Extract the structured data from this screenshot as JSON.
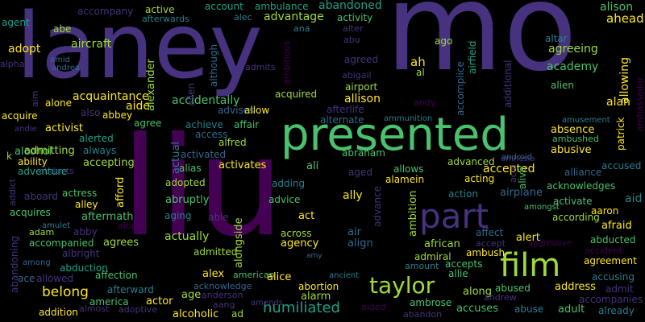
{
  "palette": {
    "background": "#000000",
    "indigo": "#46327e",
    "purple": "#440154",
    "blue": "#31688e",
    "teal": "#277f8e",
    "seagreen": "#1fa187",
    "green": "#4ac16d",
    "lime": "#a0da39",
    "yellow": "#fde725"
  },
  "words": [
    {
      "text": "mo",
      "color": "indigo"
    },
    {
      "text": "laney",
      "color": "indigo"
    },
    {
      "text": "liu",
      "color": "purple"
    },
    {
      "text": "presented",
      "color": "green"
    },
    {
      "text": "part",
      "color": "indigo"
    },
    {
      "text": "film",
      "color": "lime"
    },
    {
      "text": "taylor",
      "color": "lime"
    },
    {
      "text": "humiliated",
      "color": "seagreen"
    },
    {
      "text": "belong",
      "color": "yellow"
    },
    {
      "text": "accompany",
      "color": "indigo"
    },
    {
      "text": "active",
      "color": "lime"
    },
    {
      "text": "afterwards",
      "color": "teal"
    },
    {
      "text": "account",
      "color": "seagreen"
    },
    {
      "text": "ambulance",
      "color": "seagreen"
    },
    {
      "text": "abandoned",
      "color": "seagreen"
    },
    {
      "text": "alison",
      "color": "green"
    },
    {
      "text": "agent",
      "color": "seagreen"
    },
    {
      "text": "abe",
      "color": "lime"
    },
    {
      "text": "alec",
      "color": "teal"
    },
    {
      "text": "advantage",
      "color": "lime"
    },
    {
      "text": "activity",
      "color": "green"
    },
    {
      "text": "ahead",
      "color": "yellow"
    },
    {
      "text": "ana",
      "color": "teal"
    },
    {
      "text": "alter",
      "color": "indigo"
    },
    {
      "text": "adopt",
      "color": "yellow"
    },
    {
      "text": "aircraft",
      "color": "lime"
    },
    {
      "text": "abu",
      "color": "indigo"
    },
    {
      "text": "ago",
      "color": "lime"
    },
    {
      "text": "altar",
      "color": "teal"
    },
    {
      "text": "alpha",
      "color": "indigo"
    },
    {
      "text": "amid",
      "color": "blue"
    },
    {
      "text": "andrea",
      "color": "blue"
    },
    {
      "text": "agreed",
      "color": "indigo"
    },
    {
      "text": "ah",
      "color": "yellow"
    },
    {
      "text": "agreeing",
      "color": "lime"
    },
    {
      "text": "academy",
      "color": "green"
    },
    {
      "text": "ambitious",
      "color": "purple"
    },
    {
      "text": "abigail",
      "color": "indigo"
    },
    {
      "text": "al",
      "color": "lime"
    },
    {
      "text": "admits",
      "color": "indigo"
    },
    {
      "text": "airport",
      "color": "lime"
    },
    {
      "text": "alien",
      "color": "green"
    },
    {
      "text": "allison",
      "color": "yellow"
    },
    {
      "text": "aim",
      "color": "indigo"
    },
    {
      "text": "alone",
      "color": "yellow"
    },
    {
      "text": "acquaintance",
      "color": "yellow"
    },
    {
      "text": "acquired",
      "color": "lime"
    },
    {
      "text": "afterlife",
      "color": "indigo"
    },
    {
      "text": "aide",
      "color": "yellow"
    },
    {
      "text": "accidentally",
      "color": "green"
    },
    {
      "text": "advises",
      "color": "blue"
    },
    {
      "text": "alan",
      "color": "yellow"
    },
    {
      "text": "andy",
      "color": "purple"
    },
    {
      "text": "acquire",
      "color": "yellow"
    },
    {
      "text": "also",
      "color": "indigo"
    },
    {
      "text": "abbey",
      "color": "yellow"
    },
    {
      "text": "allow",
      "color": "yellow"
    },
    {
      "text": "alternate",
      "color": "blue"
    },
    {
      "text": "ammunition",
      "color": "teal"
    },
    {
      "text": "amusement",
      "color": "teal"
    },
    {
      "text": "agree",
      "color": "green"
    },
    {
      "text": "achieve",
      "color": "teal"
    },
    {
      "text": "affair",
      "color": "green"
    },
    {
      "text": "absence",
      "color": "yellow"
    },
    {
      "text": "andie",
      "color": "indigo"
    },
    {
      "text": "activist",
      "color": "yellow"
    },
    {
      "text": "access",
      "color": "blue"
    },
    {
      "text": "ambushed",
      "color": "green"
    },
    {
      "text": "alerted",
      "color": "seagreen"
    },
    {
      "text": "alfred",
      "color": "lime"
    },
    {
      "text": "abusive",
      "color": "yellow"
    },
    {
      "text": "alcohol",
      "color": "green"
    },
    {
      "text": "admitting",
      "color": "lime"
    },
    {
      "text": "always",
      "color": "teal"
    },
    {
      "text": "activated",
      "color": "blue"
    },
    {
      "text": "abraham",
      "color": "green"
    },
    {
      "text": "amnesia",
      "color": "indigo"
    },
    {
      "text": "android",
      "color": "blue"
    },
    {
      "text": "accused",
      "color": "teal"
    },
    {
      "text": "ability",
      "color": "yellow"
    },
    {
      "text": "accepting",
      "color": "lime"
    },
    {
      "text": "alias",
      "color": "green"
    },
    {
      "text": "activates",
      "color": "yellow"
    },
    {
      "text": "ali",
      "color": "green"
    },
    {
      "text": "aged",
      "color": "indigo"
    },
    {
      "text": "advanced",
      "color": "lime"
    },
    {
      "text": "accepted",
      "color": "yellow"
    },
    {
      "text": "alliance",
      "color": "blue"
    },
    {
      "text": "abducts",
      "color": "indigo"
    },
    {
      "text": "adventure",
      "color": "seagreen"
    },
    {
      "text": "allows",
      "color": "green"
    },
    {
      "text": "alamein",
      "color": "yellow"
    },
    {
      "text": "acting",
      "color": "yellow"
    },
    {
      "text": "adopted",
      "color": "lime"
    },
    {
      "text": "adding",
      "color": "teal"
    },
    {
      "text": "acknowledges",
      "color": "green"
    },
    {
      "text": "aboard",
      "color": "indigo"
    },
    {
      "text": "actress",
      "color": "green"
    },
    {
      "text": "abruptly",
      "color": "green"
    },
    {
      "text": "advice",
      "color": "green"
    },
    {
      "text": "ally",
      "color": "yellow"
    },
    {
      "text": "action",
      "color": "teal"
    },
    {
      "text": "airplane",
      "color": "blue"
    },
    {
      "text": "activate",
      "color": "green"
    },
    {
      "text": "aid",
      "color": "teal"
    },
    {
      "text": "alley",
      "color": "yellow"
    },
    {
      "text": "acquires",
      "color": "green"
    },
    {
      "text": "amongst",
      "color": "green"
    },
    {
      "text": "aaron",
      "color": "yellow"
    },
    {
      "text": "aftermath",
      "color": "green"
    },
    {
      "text": "aging",
      "color": "teal"
    },
    {
      "text": "able",
      "color": "indigo"
    },
    {
      "text": "act",
      "color": "yellow"
    },
    {
      "text": "according",
      "color": "lime"
    },
    {
      "text": "afraid",
      "color": "yellow"
    },
    {
      "text": "amulet",
      "color": "teal"
    },
    {
      "text": "albert",
      "color": "purple"
    },
    {
      "text": "adam",
      "color": "lime"
    },
    {
      "text": "abby",
      "color": "indigo"
    },
    {
      "text": "actually",
      "color": "lime"
    },
    {
      "text": "across",
      "color": "lime"
    },
    {
      "text": "air",
      "color": "blue"
    },
    {
      "text": "affect",
      "color": "blue"
    },
    {
      "text": "alert",
      "color": "yellow"
    },
    {
      "text": "aggressive",
      "color": "purple"
    },
    {
      "text": "accompanied",
      "color": "green"
    },
    {
      "text": "agrees",
      "color": "lime"
    },
    {
      "text": "agency",
      "color": "yellow"
    },
    {
      "text": "align",
      "color": "blue"
    },
    {
      "text": "african",
      "color": "lime"
    },
    {
      "text": "accept",
      "color": "indigo"
    },
    {
      "text": "abducted",
      "color": "green"
    },
    {
      "text": "albright",
      "color": "indigo"
    },
    {
      "text": "admitted",
      "color": "lime"
    },
    {
      "text": "ambush",
      "color": "yellow"
    },
    {
      "text": "accident",
      "color": "purple"
    },
    {
      "text": "among",
      "color": "blue"
    },
    {
      "text": "abduction",
      "color": "seagreen"
    },
    {
      "text": "amy",
      "color": "blue"
    },
    {
      "text": "admiral",
      "color": "lime"
    },
    {
      "text": "amount",
      "color": "teal"
    },
    {
      "text": "accepts",
      "color": "green"
    },
    {
      "text": "agreement",
      "color": "yellow"
    },
    {
      "text": "ace",
      "color": "blue"
    },
    {
      "text": "allowed",
      "color": "indigo"
    },
    {
      "text": "affection",
      "color": "green"
    },
    {
      "text": "alex",
      "color": "yellow"
    },
    {
      "text": "american",
      "color": "green"
    },
    {
      "text": "alice",
      "color": "yellow"
    },
    {
      "text": "ancient",
      "color": "teal"
    },
    {
      "text": "allie",
      "color": "green"
    },
    {
      "text": "accusing",
      "color": "teal"
    },
    {
      "text": "acknowledge",
      "color": "blue"
    },
    {
      "text": "abortion",
      "color": "yellow"
    },
    {
      "text": "along",
      "color": "lime"
    },
    {
      "text": "address",
      "color": "yellow"
    },
    {
      "text": "admit",
      "color": "indigo"
    },
    {
      "text": "afterward",
      "color": "teal"
    },
    {
      "text": "age",
      "color": "lime"
    },
    {
      "text": "anderson",
      "color": "indigo"
    },
    {
      "text": "alarm",
      "color": "lime"
    },
    {
      "text": "abused",
      "color": "green"
    },
    {
      "text": "andrew",
      "color": "indigo"
    },
    {
      "text": "accompanies",
      "color": "indigo"
    },
    {
      "text": "america",
      "color": "green"
    },
    {
      "text": "actor",
      "color": "yellow"
    },
    {
      "text": "aang",
      "color": "indigo"
    },
    {
      "text": "amends",
      "color": "indigo"
    },
    {
      "text": "ambrose",
      "color": "green"
    },
    {
      "text": "abuse",
      "color": "teal"
    },
    {
      "text": "adult",
      "color": "green"
    },
    {
      "text": "already",
      "color": "teal"
    },
    {
      "text": "addition",
      "color": "yellow"
    },
    {
      "text": "almost",
      "color": "indigo"
    },
    {
      "text": "adoptive",
      "color": "indigo"
    },
    {
      "text": "alcoholic",
      "color": "yellow"
    },
    {
      "text": "ad",
      "color": "lime"
    },
    {
      "text": "aided",
      "color": "purple"
    },
    {
      "text": "accuses",
      "color": "green"
    },
    {
      "text": "abandon",
      "color": "indigo"
    },
    {
      "text": "abandoning",
      "color": "indigo"
    },
    {
      "text": "addict",
      "color": "indigo"
    },
    {
      "text": "k",
      "color": "lime"
    },
    {
      "text": "afford",
      "color": "yellow"
    },
    {
      "text": "actual",
      "color": "teal"
    },
    {
      "text": "alexander",
      "color": "lime"
    },
    {
      "text": "allen",
      "color": "indigo"
    },
    {
      "text": "although",
      "color": "blue"
    },
    {
      "text": "alongside",
      "color": "lime"
    },
    {
      "text": "ambition",
      "color": "lime"
    },
    {
      "text": "advance",
      "color": "indigo"
    },
    {
      "text": "airfield",
      "color": "seagreen"
    },
    {
      "text": "accomplice",
      "color": "blue"
    },
    {
      "text": "additional",
      "color": "indigo"
    },
    {
      "text": "acid",
      "color": "indigo"
    },
    {
      "text": "alive",
      "color": "green"
    },
    {
      "text": "allowing",
      "color": "yellow"
    },
    {
      "text": "patrick",
      "color": "yellow"
    },
    {
      "text": "ambassador",
      "color": "purple"
    }
  ]
}
